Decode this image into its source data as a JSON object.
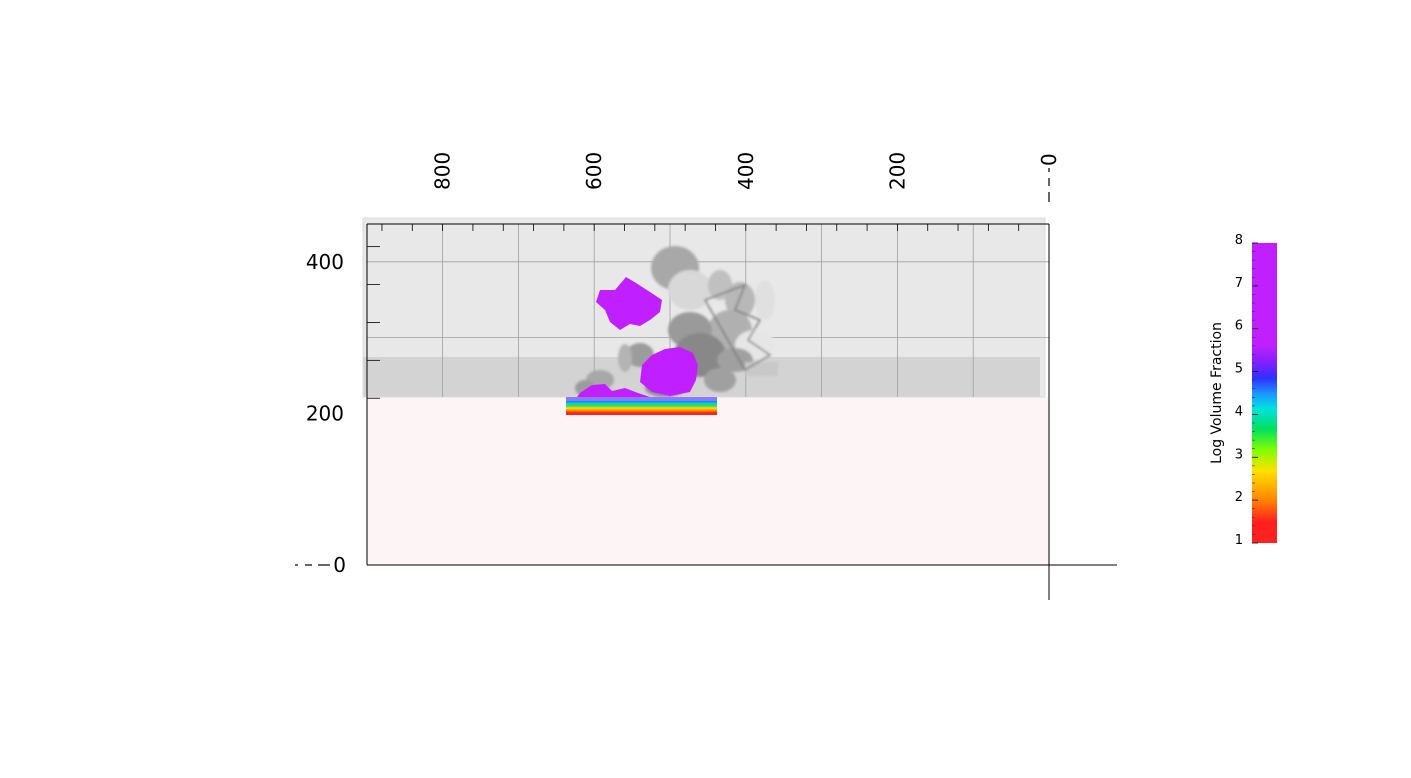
{
  "chart_data": {
    "type": "volume-render",
    "x_axis": {
      "ticks": [
        800,
        600,
        400,
        200,
        0
      ],
      "reversed": true,
      "range": [
        900,
        0
      ]
    },
    "y_axis": {
      "ticks": [
        400,
        200,
        0
      ],
      "range": [
        0,
        450
      ]
    },
    "grid": true,
    "colorbar": {
      "title": "Log Volume Fraction",
      "ticks": [
        1,
        2,
        3,
        4,
        5,
        6,
        7,
        8
      ],
      "range": [
        1,
        8
      ],
      "colors": [
        "#ff2020",
        "#ff8c00",
        "#ffe000",
        "#40e040",
        "#00e0e0",
        "#1e90ff",
        "#3030ff",
        "#c020ff"
      ],
      "placement": "right"
    },
    "colors": {
      "high_fraction": "#c020ff",
      "smoke": "#8c8c8c",
      "upper_region": "#e8e8e8",
      "band": "#d3d3d3",
      "ground": "#fdf5f5"
    }
  }
}
